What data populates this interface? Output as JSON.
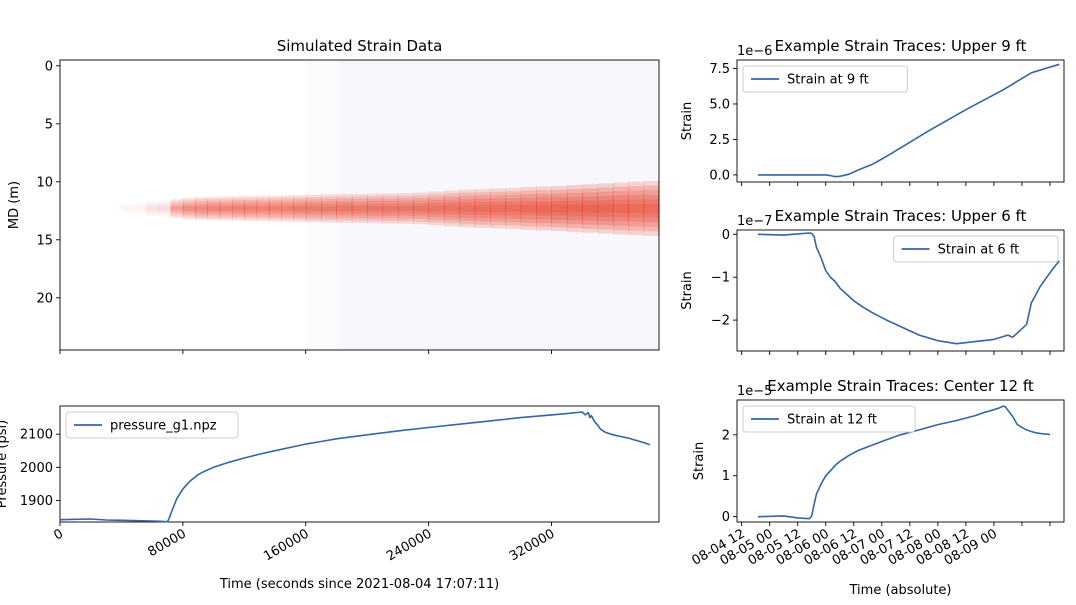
{
  "colors": {
    "line": "#3465a4",
    "heat": "#e8341c",
    "heat_bg": "#f8f8fc"
  },
  "chart_data": [
    {
      "id": "heatmap",
      "type": "heatmap",
      "title": "Simulated Strain Data",
      "ylabel": "MD (m)",
      "xlabel": "",
      "xlim": [
        0,
        390000
      ],
      "ylim": [
        24.5,
        -0.5
      ],
      "yticks": [
        0,
        5,
        10,
        15,
        20
      ],
      "xticks": [
        0,
        80000,
        160000,
        240000,
        320000
      ],
      "show_xtick_labels": false,
      "background_bands": [
        {
          "x_start": 0,
          "x_end": 160000,
          "level": 0.0
        },
        {
          "x_start": 160000,
          "x_end": 181000,
          "level": 0.02
        },
        {
          "x_start": 181000,
          "x_end": 390000,
          "level": 0.04
        }
      ],
      "plume": {
        "center_md": 12.3,
        "columns": [
          [
            40000,
            0.03,
            0.2
          ],
          [
            48000,
            0.06,
            0.25
          ],
          [
            56000,
            0.1,
            0.3
          ],
          [
            64000,
            0.12,
            0.32
          ],
          [
            72000,
            0.45,
            0.38
          ],
          [
            80000,
            0.55,
            0.42
          ],
          [
            88000,
            0.6,
            0.45
          ],
          [
            96000,
            0.62,
            0.46
          ],
          [
            104000,
            0.63,
            0.47
          ],
          [
            112000,
            0.64,
            0.48
          ],
          [
            120000,
            0.65,
            0.49
          ],
          [
            128000,
            0.66,
            0.5
          ],
          [
            136000,
            0.67,
            0.51
          ],
          [
            144000,
            0.68,
            0.52
          ],
          [
            152000,
            0.69,
            0.53
          ],
          [
            160000,
            0.7,
            0.54
          ],
          [
            170000,
            0.7,
            0.55
          ],
          [
            180000,
            0.71,
            0.56
          ],
          [
            190000,
            0.72,
            0.57
          ],
          [
            200000,
            0.73,
            0.58
          ],
          [
            210000,
            0.73,
            0.59
          ],
          [
            220000,
            0.74,
            0.6
          ],
          [
            230000,
            0.75,
            0.62
          ],
          [
            240000,
            0.76,
            0.66
          ],
          [
            250000,
            0.78,
            0.7
          ],
          [
            260000,
            0.8,
            0.74
          ],
          [
            270000,
            0.82,
            0.76
          ],
          [
            280000,
            0.83,
            0.78
          ],
          [
            290000,
            0.84,
            0.8
          ],
          [
            300000,
            0.86,
            0.84
          ],
          [
            310000,
            0.88,
            0.86
          ],
          [
            320000,
            0.9,
            0.88
          ],
          [
            330000,
            0.9,
            0.92
          ],
          [
            340000,
            0.9,
            0.95
          ],
          [
            350000,
            0.9,
            0.98
          ],
          [
            360000,
            0.88,
            1.02
          ],
          [
            370000,
            0.85,
            1.05
          ],
          [
            380000,
            0.82,
            1.08
          ],
          [
            390000,
            0.8,
            1.1
          ]
        ]
      }
    },
    {
      "id": "pressure",
      "type": "line",
      "title": "",
      "ylabel": "Pressure (psi)",
      "xlabel": "Time (seconds since 2021-08-04 17:07:11)",
      "xlim": [
        0,
        390000
      ],
      "ylim": [
        1835,
        2185
      ],
      "yticks": [
        1900,
        2000,
        2100
      ],
      "xticks": [
        0,
        80000,
        160000,
        240000,
        320000
      ],
      "legend_position": "upper-left",
      "series": [
        {
          "name": "pressure_g1.npz",
          "x": [
            0,
            10000,
            20000,
            30000,
            40000,
            50000,
            60000,
            65000,
            70000,
            71000,
            73000,
            76000,
            80000,
            85000,
            90000,
            95000,
            100000,
            110000,
            120000,
            130000,
            140000,
            150000,
            160000,
            170000,
            180000,
            200000,
            220000,
            240000,
            260000,
            280000,
            300000,
            320000,
            330000,
            340000,
            342000,
            344000,
            345000,
            346000,
            348000,
            350000,
            352000,
            355000,
            360000,
            370000,
            380000,
            384000
          ],
          "y": [
            1842,
            1843,
            1844,
            1841,
            1840,
            1839,
            1838,
            1837,
            1836,
            1845,
            1870,
            1905,
            1935,
            1960,
            1978,
            1990,
            2000,
            2015,
            2028,
            2040,
            2050,
            2060,
            2070,
            2078,
            2086,
            2098,
            2110,
            2120,
            2130,
            2140,
            2150,
            2158,
            2162,
            2167,
            2158,
            2165,
            2150,
            2156,
            2138,
            2128,
            2115,
            2106,
            2098,
            2088,
            2075,
            2068
          ]
        }
      ]
    },
    {
      "id": "trace9",
      "type": "line",
      "title": "Example Strain Traces: Upper 9 ft",
      "ylabel": "Strain",
      "xlabel": "",
      "offset_text": "1e−6",
      "xlim": [
        -2,
        138
      ],
      "ylim": [
        -0.5,
        8.1
      ],
      "yticks": [
        0.0,
        2.5,
        5.0,
        7.5
      ],
      "ytick_labels": [
        "0.0",
        "2.5",
        "5.0",
        "7.5"
      ],
      "xticks": [
        0,
        12,
        24,
        36,
        48,
        60,
        72,
        84,
        96,
        108,
        120,
        132
      ],
      "legend_position": "upper-left",
      "series": [
        {
          "name": "Strain at 9 ft",
          "x": [
            7,
            18,
            30,
            36,
            38,
            40,
            42,
            46,
            50,
            56,
            64,
            72,
            80,
            88,
            96,
            104,
            112,
            120,
            124,
            130,
            136
          ],
          "y": [
            0.0,
            0.0,
            0.0,
            0.0,
            -0.05,
            -0.12,
            -0.1,
            0.05,
            0.35,
            0.75,
            1.5,
            2.3,
            3.1,
            3.85,
            4.6,
            5.3,
            6.0,
            6.8,
            7.2,
            7.5,
            7.8
          ]
        }
      ]
    },
    {
      "id": "trace6",
      "type": "line",
      "title": "Example Strain Traces: Upper 6 ft",
      "ylabel": "Strain",
      "xlabel": "",
      "offset_text": "1e−7",
      "xlim": [
        -2,
        138
      ],
      "ylim": [
        -2.72,
        0.1
      ],
      "yticks": [
        0,
        -1,
        -2
      ],
      "ytick_labels": [
        "0",
        "−1",
        "−2"
      ],
      "xticks": [
        0,
        12,
        24,
        36,
        48,
        60,
        72,
        84,
        96,
        108,
        120,
        132
      ],
      "legend_position": "upper-right",
      "series": [
        {
          "name": "Strain at 6 ft",
          "x": [
            7,
            18,
            24,
            29,
            30,
            31,
            32,
            34,
            36,
            38,
            40,
            42,
            44,
            46,
            48,
            52,
            56,
            62,
            68,
            76,
            84,
            92,
            100,
            108,
            114,
            116,
            118,
            120,
            122,
            124,
            126,
            128,
            130,
            132,
            134,
            136
          ],
          "y": [
            0.0,
            -0.02,
            0.01,
            0.03,
            0.02,
            -0.05,
            -0.3,
            -0.55,
            -0.85,
            -1.0,
            -1.1,
            -1.25,
            -1.35,
            -1.45,
            -1.55,
            -1.7,
            -1.83,
            -2.0,
            -2.15,
            -2.35,
            -2.48,
            -2.55,
            -2.5,
            -2.45,
            -2.35,
            -2.4,
            -2.3,
            -2.2,
            -2.1,
            -1.6,
            -1.4,
            -1.2,
            -1.05,
            -0.9,
            -0.75,
            -0.62
          ]
        }
      ]
    },
    {
      "id": "trace12",
      "type": "line",
      "title": "Example Strain Traces: Center 12 ft",
      "ylabel": "Strain",
      "xlabel": "Time (absolute)",
      "offset_text": "1e−5",
      "xlim": [
        -2,
        138
      ],
      "ylim": [
        -0.13,
        2.85
      ],
      "yticks": [
        0,
        1,
        2
      ],
      "ytick_labels": [
        "0",
        "1",
        "2"
      ],
      "xticks": [
        0,
        12,
        24,
        36,
        48,
        60,
        72,
        84,
        96,
        108,
        120,
        132
      ],
      "xtick_labels": [
        "08-04 12",
        "08-05 00",
        "08-05 12",
        "08-06 00",
        "08-06 12",
        "08-07 00",
        "08-07 12",
        "08-08 00",
        "08-08 12",
        "08-09 00"
      ],
      "xtick_label_positions": [
        0,
        12,
        24,
        36,
        48,
        60,
        72,
        84,
        96,
        108
      ],
      "legend_position": "upper-left",
      "series": [
        {
          "name": "Strain at 12 ft",
          "x": [
            7,
            18,
            24,
            29,
            30,
            31,
            32,
            34,
            36,
            38,
            40,
            42,
            46,
            50,
            56,
            62,
            68,
            76,
            84,
            92,
            100,
            104,
            106,
            110,
            112,
            113,
            114,
            116,
            118,
            120,
            122,
            124,
            126,
            128,
            130,
            132
          ],
          "y": [
            0.0,
            0.02,
            -0.03,
            -0.05,
            0.02,
            0.3,
            0.55,
            0.8,
            1.0,
            1.12,
            1.25,
            1.35,
            1.5,
            1.62,
            1.75,
            1.88,
            2.0,
            2.12,
            2.25,
            2.35,
            2.47,
            2.55,
            2.58,
            2.65,
            2.7,
            2.68,
            2.6,
            2.45,
            2.25,
            2.18,
            2.12,
            2.08,
            2.05,
            2.03,
            2.02,
            2.01
          ]
        }
      ]
    }
  ]
}
